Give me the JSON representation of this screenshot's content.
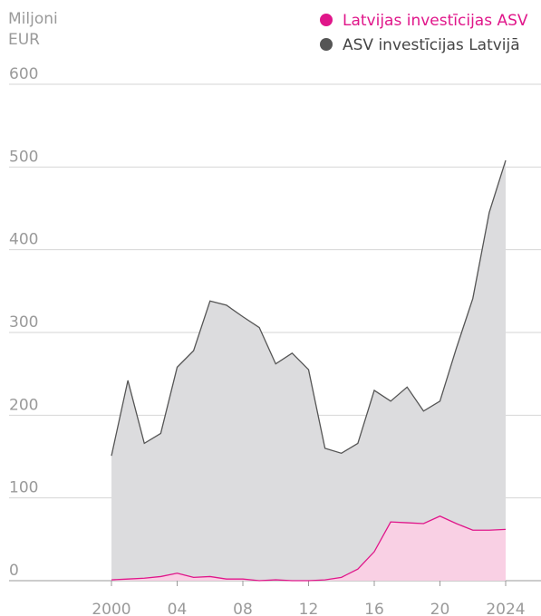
{
  "chart_data": {
    "type": "area",
    "ylabel": "Miljoni EUR",
    "x": [
      2000,
      2001,
      2002,
      2003,
      2004,
      2005,
      2006,
      2007,
      2008,
      2009,
      2010,
      2011,
      2012,
      2013,
      2014,
      2015,
      2016,
      2017,
      2018,
      2019,
      2020,
      2021,
      2022,
      2023,
      2024
    ],
    "series": [
      {
        "name": "Latvijas investīcijas ASV",
        "color": "#e0168a",
        "fill": "#f9d0e4",
        "values": [
          1,
          2,
          3,
          5,
          9,
          4,
          5,
          2,
          2,
          0,
          1,
          0,
          0,
          1,
          4,
          14,
          35,
          71,
          70,
          69,
          78,
          69,
          61,
          61,
          62
        ]
      },
      {
        "name": "ASV investīcijas Latvijā",
        "color": "#555555",
        "fill": "#dcdcde",
        "values": [
          151,
          242,
          166,
          178,
          258,
          278,
          338,
          333,
          319,
          306,
          262,
          275,
          255,
          160,
          154,
          166,
          230,
          217,
          234,
          205,
          217,
          281,
          341,
          445,
          508
        ]
      }
    ],
    "xlim": [
      2000,
      2024
    ],
    "xticks": [
      2000,
      {
        "value": 2004,
        "label": "04"
      },
      {
        "value": 2008,
        "label": "08"
      },
      {
        "value": 2012,
        "label": "12"
      },
      {
        "value": 2016,
        "label": "16"
      },
      {
        "value": 2020,
        "label": "20"
      },
      2024
    ],
    "ylim": [
      0,
      600
    ],
    "yticks": [
      0,
      100,
      200,
      300,
      400,
      500,
      600
    ],
    "grid": true,
    "legend": "top-right"
  }
}
